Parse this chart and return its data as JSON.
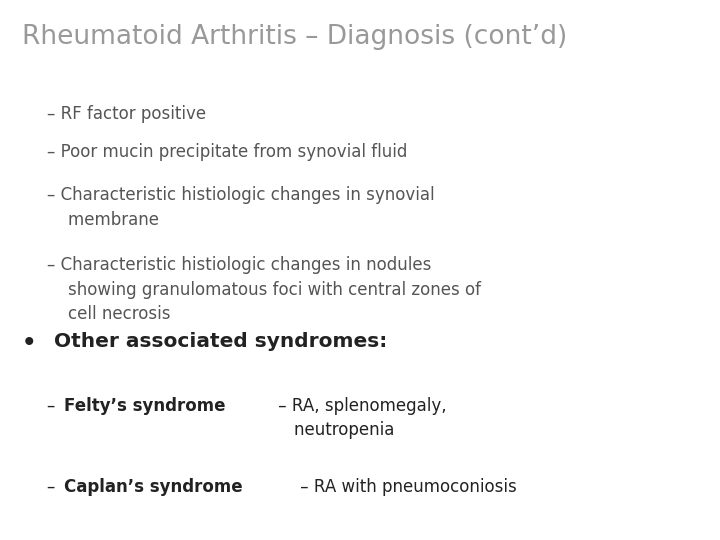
{
  "background_color": "#ffffff",
  "title": "Rheumatoid Arthritis – Diagnosis (cont’d)",
  "title_color": "#999999",
  "title_fontsize": 19,
  "body_color": "#555555",
  "body_fontsize": 12,
  "bold_color": "#222222",
  "bullet_color": "#222222",
  "bullet_fontsize": 14.5,
  "sub_items": [
    "– RF factor positive",
    "– Poor mucin precipitate from synovial fluid",
    "– Characteristic histiologic changes in synovial\n    membrane",
    "– Characteristic histiologic changes in nodules\n    showing granulomatous foci with central zones of\n    cell necrosis"
  ],
  "bullet_header": "Other associated syndromes:",
  "felty_bold": "Felty’s syndrome",
  "felty_rest": " – RA, splenomegaly,\n    neutropenia",
  "caplan_bold": "Caplan’s syndrome",
  "caplan_rest": " – RA with pneumoconiosis"
}
